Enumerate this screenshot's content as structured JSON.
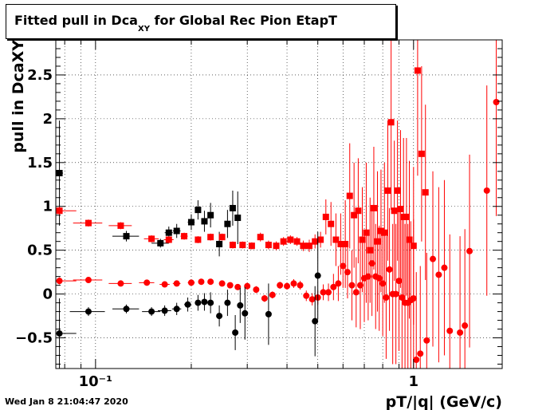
{
  "title": {
    "main": "Fitted pull in Dca",
    "sub": "XY",
    "rest": " for Global Rec Pion EtapT"
  },
  "timestamp": "Wed Jan  8 21:04:47 2020",
  "chart_data": {
    "type": "scatter",
    "title": "Fitted pull in DcaXY for Global Rec Pion EtapT",
    "xlabel": "pT/|q| (GeV/c)",
    "ylabel": "pull in DcaXY",
    "x_scale": "log",
    "xlim": [
      0.075,
      1.9
    ],
    "ylim": [
      -0.85,
      2.9
    ],
    "x_tick_labels": [
      {
        "x": 0.1,
        "text": "10⁻¹"
      },
      {
        "x": 1,
        "text": "1"
      }
    ],
    "y_ticks": [
      -0.5,
      0,
      0.5,
      1,
      1.5,
      2,
      2.5
    ],
    "y_tick_labels": [
      "−0.5",
      "0",
      "0.5",
      "1",
      "1.5",
      "2",
      "2.5"
    ],
    "grid": true,
    "colors": {
      "black_series": "#000000",
      "red_series": "#ff0000"
    },
    "series": [
      {
        "marker": "square",
        "color": "#000000",
        "points": [
          [
            0.077,
            1.38,
            0.6,
            0,
            0.002
          ],
          [
            0.125,
            0.66,
            0.06,
            0.012,
            0.012
          ],
          [
            0.16,
            0.58,
            0.05,
            0.01,
            0.01
          ],
          [
            0.17,
            0.7,
            0.07,
            0.005,
            0.005
          ],
          [
            0.18,
            0.72,
            0.08,
            0.005,
            0.005
          ],
          [
            0.2,
            0.82,
            0.09,
            0.005,
            0.005
          ],
          [
            0.21,
            0.96,
            0.11,
            0.004,
            0.004
          ],
          [
            0.22,
            0.83,
            0.12,
            0.004,
            0.004
          ],
          [
            0.23,
            0.9,
            0.14,
            0.004,
            0.004
          ],
          [
            0.245,
            0.57,
            0.14,
            0.004,
            0.004
          ],
          [
            0.26,
            0.8,
            0.16,
            0.004,
            0.004
          ],
          [
            0.27,
            0.98,
            0.2,
            0.004,
            0.004
          ],
          [
            0.28,
            0.87,
            0.3,
            0.004,
            0.004
          ]
        ]
      },
      {
        "marker": "square",
        "color": "#ff0000",
        "points": [
          [
            0.077,
            0.95,
            0.05,
            0.002,
            0.01
          ],
          [
            0.095,
            0.81,
            0.04,
            0.01,
            0.01
          ],
          [
            0.12,
            0.78,
            0.04,
            0.01,
            0.01
          ],
          [
            0.15,
            0.63,
            0.04,
            0.008,
            0.008
          ],
          [
            0.17,
            0.62,
            0.04,
            0.006,
            0.006
          ],
          [
            0.19,
            0.66,
            0.04,
            0.005,
            0.005
          ],
          [
            0.21,
            0.62,
            0.04,
            0.004,
            0.004
          ],
          [
            0.23,
            0.65,
            0.04,
            0.004,
            0.004
          ],
          [
            0.25,
            0.65,
            0.04,
            0.004,
            0.004
          ],
          [
            0.27,
            0.56,
            0.04,
            0.004,
            0.004
          ],
          [
            0.29,
            0.56,
            0.04,
            0.004,
            0.004
          ],
          [
            0.31,
            0.55,
            0.04,
            0.004,
            0.004
          ],
          [
            0.33,
            0.65,
            0.05,
            0.004,
            0.004
          ],
          [
            0.35,
            0.56,
            0.05,
            0.004,
            0.004
          ],
          [
            0.37,
            0.55,
            0.05,
            0.004,
            0.004
          ],
          [
            0.39,
            0.6,
            0.05,
            0.004,
            0.004
          ],
          [
            0.41,
            0.62,
            0.05,
            0.004,
            0.004
          ],
          [
            0.43,
            0.6,
            0.05,
            0.004,
            0.004
          ],
          [
            0.45,
            0.55,
            0.06,
            0.004,
            0.004
          ],
          [
            0.47,
            0.55,
            0.07,
            0.004,
            0.004
          ],
          [
            0.49,
            0.6,
            0.08,
            0.004,
            0.004
          ],
          [
            0.51,
            0.62,
            0.09,
            0.004,
            0.004
          ],
          [
            0.53,
            0.88,
            0.2,
            0.004,
            0.004
          ],
          [
            0.55,
            0.8,
            0.25,
            0.004,
            0.004
          ],
          [
            0.57,
            0.62,
            0.3,
            0.004,
            0.004
          ],
          [
            0.59,
            0.57,
            0.35,
            0.004,
            0.004
          ],
          [
            0.61,
            0.57,
            0.5,
            0.004,
            0.004
          ],
          [
            0.63,
            1.12,
            0.6,
            0.004,
            0.004
          ],
          [
            0.65,
            0.9,
            0.6,
            0.004,
            0.004
          ],
          [
            0.67,
            0.95,
            0.6,
            0.004,
            0.004
          ],
          [
            0.69,
            0.62,
            0.6,
            0.004,
            0.004
          ],
          [
            0.71,
            0.7,
            0.8,
            0.004,
            0.004
          ],
          [
            0.73,
            0.5,
            0.6,
            0.004,
            0.004
          ],
          [
            0.75,
            0.98,
            0.7,
            0.004,
            0.004
          ],
          [
            0.77,
            0.6,
            0.8,
            0.004,
            0.004
          ],
          [
            0.79,
            0.72,
            0.7,
            0.004,
            0.004
          ],
          [
            0.81,
            0.7,
            0.8,
            0.004,
            0.004
          ],
          [
            0.83,
            1.18,
            0.8,
            0.004,
            0.004
          ],
          [
            0.85,
            1.96,
            1,
            0.004,
            0.004
          ],
          [
            0.87,
            0.95,
            0.8,
            0.004,
            0.004
          ],
          [
            0.89,
            1.18,
            0.8,
            0.004,
            0.004
          ],
          [
            0.91,
            0.97,
            0.9,
            0.004,
            0.004
          ],
          [
            0.93,
            0.88,
            0.9,
            0.004,
            0.004
          ],
          [
            0.95,
            0.88,
            0.9,
            0.004,
            0.004
          ],
          [
            0.97,
            0.62,
            0.9,
            0.004,
            0.004
          ],
          [
            1.0,
            0.55,
            0.9,
            0.004,
            0.004
          ],
          [
            1.03,
            2.55,
            1.2,
            0.004,
            0.004
          ],
          [
            1.06,
            1.6,
            1,
            0.004,
            0.004
          ],
          [
            1.09,
            1.16,
            1,
            0.004,
            0.004
          ]
        ]
      },
      {
        "marker": "circle",
        "color": "#ff0000",
        "points": [
          [
            0.077,
            0.15,
            0.04,
            0.002,
            0.01
          ],
          [
            0.095,
            0.16,
            0.03,
            0.01,
            0.01
          ],
          [
            0.12,
            0.12,
            0.03,
            0.01,
            0.01
          ],
          [
            0.145,
            0.13,
            0.03,
            0.008,
            0.008
          ],
          [
            0.165,
            0.11,
            0.03,
            0.006,
            0.006
          ],
          [
            0.18,
            0.12,
            0.03,
            0.005,
            0.005
          ],
          [
            0.2,
            0.13,
            0.03,
            0.005,
            0.005
          ],
          [
            0.215,
            0.14,
            0.03,
            0.004,
            0.004
          ],
          [
            0.23,
            0.14,
            0.03,
            0.004,
            0.004
          ],
          [
            0.25,
            0.12,
            0.03,
            0.004,
            0.004
          ],
          [
            0.265,
            0.1,
            0.03,
            0.004,
            0.004
          ],
          [
            0.28,
            0.08,
            0.03,
            0.004,
            0.004
          ],
          [
            0.3,
            0.09,
            0.04,
            0.004,
            0.004
          ],
          [
            0.32,
            0.05,
            0.04,
            0.004,
            0.004
          ],
          [
            0.34,
            -0.05,
            0.04,
            0.004,
            0.004
          ],
          [
            0.36,
            -0.01,
            0.04,
            0.004,
            0.004
          ],
          [
            0.38,
            0.1,
            0.04,
            0.004,
            0.004
          ],
          [
            0.4,
            0.09,
            0.04,
            0.004,
            0.004
          ],
          [
            0.42,
            0.12,
            0.05,
            0.004,
            0.004
          ],
          [
            0.44,
            0.1,
            0.05,
            0.004,
            0.004
          ],
          [
            0.46,
            -0.02,
            0.06,
            0.004,
            0.004
          ],
          [
            0.48,
            -0.06,
            0.07,
            0.004,
            0.004
          ],
          [
            0.5,
            -0.04,
            0.08,
            0.004,
            0.004
          ],
          [
            0.52,
            0.02,
            0.09,
            0.004,
            0.004
          ],
          [
            0.54,
            0.02,
            0.1,
            0.004,
            0.004
          ],
          [
            0.56,
            0.08,
            0.15,
            0.004,
            0.004
          ],
          [
            0.58,
            0.12,
            0.2,
            0.004,
            0.004
          ],
          [
            0.6,
            0.32,
            0.25,
            0.004,
            0.004
          ],
          [
            0.62,
            0.25,
            0.3,
            0.004,
            0.004
          ],
          [
            0.64,
            0.1,
            0.4,
            0.004,
            0.004
          ],
          [
            0.66,
            0.02,
            0.4,
            0.004,
            0.004
          ],
          [
            0.68,
            0.1,
            0.5,
            0.004,
            0.004
          ],
          [
            0.7,
            0.18,
            0.5,
            0.004,
            0.004
          ],
          [
            0.72,
            0.2,
            0.5,
            0.004,
            0.004
          ],
          [
            0.74,
            0.35,
            0.6,
            0.004,
            0.004
          ],
          [
            0.76,
            0.2,
            0.6,
            0.004,
            0.004
          ],
          [
            0.78,
            0.18,
            0.6,
            0.004,
            0.004
          ],
          [
            0.8,
            0.12,
            0.6,
            0.004,
            0.004
          ],
          [
            0.82,
            -0.04,
            0.7,
            0.004,
            0.004
          ],
          [
            0.84,
            0.28,
            0.7,
            0.004,
            0.004
          ],
          [
            0.86,
            0.0,
            0.8,
            0.004,
            0.004
          ],
          [
            0.88,
            0.0,
            0.8,
            0.004,
            0.004
          ],
          [
            0.9,
            0.15,
            0.8,
            0.004,
            0.004
          ],
          [
            0.92,
            -0.04,
            0.9,
            0.004,
            0.004
          ],
          [
            0.94,
            -0.1,
            0.9,
            0.004,
            0.004
          ],
          [
            0.96,
            -0.1,
            0.9,
            0.004,
            0.004
          ],
          [
            0.98,
            -0.07,
            0.9,
            0.004,
            0.004
          ],
          [
            1.0,
            -0.05,
            0.9,
            0.004,
            0.004
          ],
          [
            1.02,
            -0.75,
            1,
            0.004,
            0.004
          ],
          [
            1.05,
            -0.68,
            1,
            0.004,
            0.004
          ],
          [
            1.1,
            -0.53,
            1,
            0.004,
            0.004
          ],
          [
            1.15,
            0.4,
            1,
            0.004,
            0.004
          ],
          [
            1.2,
            0.22,
            1,
            0.004,
            0.004
          ],
          [
            1.25,
            0.3,
            1,
            0.004,
            0.004
          ],
          [
            1.3,
            -0.42,
            1.1,
            0.004,
            0.004
          ],
          [
            1.4,
            -0.44,
            1.1,
            0.004,
            0.004
          ],
          [
            1.45,
            -0.36,
            1.1,
            0.004,
            0.004
          ],
          [
            1.5,
            0.49,
            1.1,
            0.004,
            0.004
          ],
          [
            1.7,
            1.18,
            1.2,
            0.004,
            0.004
          ],
          [
            1.82,
            2.19,
            1.3,
            0.004,
            0.004
          ]
        ]
      },
      {
        "marker": "circle",
        "color": "#000000",
        "points": [
          [
            0.077,
            -0.45,
            0.4,
            0.002,
            0.01
          ],
          [
            0.095,
            -0.2,
            0.05,
            0.012,
            0.012
          ],
          [
            0.125,
            -0.17,
            0.05,
            0.012,
            0.012
          ],
          [
            0.15,
            -0.2,
            0.05,
            0.01,
            0.01
          ],
          [
            0.165,
            -0.19,
            0.06,
            0.008,
            0.008
          ],
          [
            0.18,
            -0.17,
            0.07,
            0.006,
            0.006
          ],
          [
            0.195,
            -0.12,
            0.08,
            0.005,
            0.005
          ],
          [
            0.21,
            -0.1,
            0.09,
            0.004,
            0.004
          ],
          [
            0.22,
            -0.09,
            0.1,
            0.004,
            0.004
          ],
          [
            0.23,
            -0.1,
            0.12,
            0.004,
            0.004
          ],
          [
            0.245,
            -0.25,
            0.12,
            0.004,
            0.004
          ],
          [
            0.26,
            -0.1,
            0.15,
            0.004,
            0.004
          ],
          [
            0.275,
            -0.44,
            0.2,
            0.004,
            0.004
          ],
          [
            0.285,
            -0.13,
            0.2,
            0.004,
            0.004
          ],
          [
            0.295,
            -0.22,
            0.3,
            0.004,
            0.004
          ],
          [
            0.35,
            -0.23,
            0.35,
            0.004,
            0.004
          ],
          [
            0.49,
            -0.31,
            0.4,
            0.004,
            0.004
          ],
          [
            0.5,
            0.21,
            0.5,
            0.004,
            0.004
          ]
        ]
      }
    ]
  }
}
